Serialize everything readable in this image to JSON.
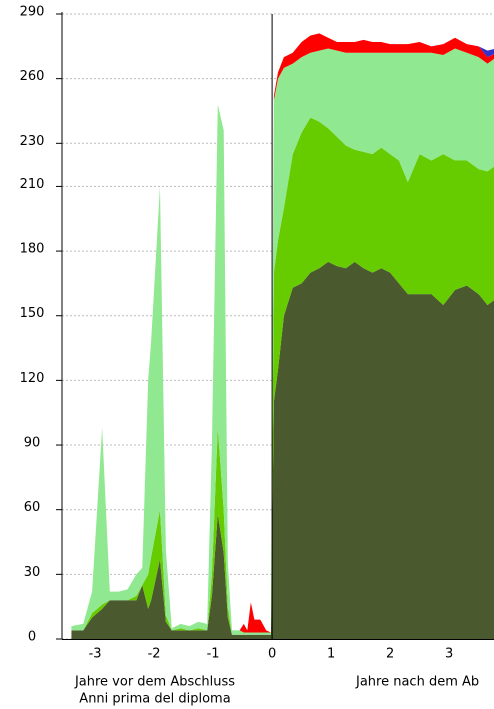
{
  "chart_data": {
    "type": "area",
    "x": [
      -3.4,
      -3.2,
      -3.05,
      -2.88,
      -2.75,
      -2.6,
      -2.45,
      -2.3,
      -2.2,
      -2.1,
      -2.05,
      -1.9,
      -1.8,
      -1.7,
      -1.55,
      -1.4,
      -1.25,
      -1.1,
      -1.02,
      -0.92,
      -0.82,
      -0.75,
      -0.68,
      -0.55,
      -0.48,
      -0.42,
      -0.36,
      -0.3,
      -0.2,
      -0.1,
      -0.02,
      0.03,
      0.1,
      0.2,
      0.35,
      0.5,
      0.65,
      0.8,
      0.95,
      1.1,
      1.25,
      1.4,
      1.55,
      1.7,
      1.85,
      2.0,
      2.15,
      2.3,
      2.5,
      2.7,
      2.9,
      3.1,
      3.3,
      3.5,
      3.65,
      3.8
    ],
    "series": [
      {
        "color": "#4b5a2e",
        "values": [
          4,
          4,
          10,
          14,
          18,
          18,
          18,
          18,
          25,
          14,
          18,
          37,
          8,
          4,
          4,
          4,
          4,
          4,
          20,
          58,
          40,
          10,
          2,
          2,
          2,
          2,
          2,
          2,
          2,
          2,
          2,
          110,
          125,
          150,
          163,
          165,
          170,
          172,
          175,
          173,
          172,
          175,
          172,
          170,
          172,
          170,
          165,
          160,
          160,
          160,
          155,
          162,
          164,
          160,
          155,
          158
        ]
      },
      {
        "color": "#66cc00",
        "values": [
          0,
          0,
          2,
          2,
          0,
          0,
          0,
          2,
          0,
          16,
          20,
          23,
          3,
          0,
          1,
          0,
          1,
          0,
          10,
          40,
          20,
          5,
          0,
          0,
          0,
          0,
          0,
          0,
          0,
          0,
          0,
          60,
          60,
          50,
          62,
          70,
          72,
          68,
          62,
          60,
          57,
          52,
          54,
          55,
          56,
          55,
          57,
          52,
          65,
          62,
          70,
          60,
          58,
          58,
          62,
          62
        ]
      },
      {
        "color": "#90e890",
        "values": [
          2,
          3,
          10,
          82,
          4,
          4,
          5,
          10,
          8,
          90,
          100,
          150,
          30,
          1,
          2,
          2,
          3,
          3,
          60,
          150,
          176,
          20,
          2,
          2,
          1,
          1,
          1,
          1,
          1,
          1,
          1,
          80,
          75,
          65,
          42,
          35,
          30,
          33,
          37,
          40,
          43,
          45,
          46,
          47,
          44,
          47,
          50,
          60,
          47,
          50,
          46,
          52,
          50,
          52,
          50,
          50
        ]
      },
      {
        "color": "#ff0000",
        "values": [
          0,
          0,
          0,
          0,
          0,
          0,
          0,
          0,
          0,
          0,
          0,
          0,
          0,
          0,
          0,
          0,
          0,
          0,
          0,
          0,
          0,
          0,
          0,
          0,
          4,
          1,
          14,
          6,
          6,
          1,
          0,
          2,
          3,
          5,
          5,
          7,
          8,
          8,
          5,
          4,
          5,
          5,
          6,
          5,
          5,
          4,
          4,
          4,
          5,
          3,
          5,
          5,
          4,
          5,
          3,
          2
        ]
      },
      {
        "color": "#3333cc",
        "values": [
          0,
          0,
          0,
          0,
          0,
          0,
          0,
          0,
          0,
          0,
          0,
          0,
          0,
          0,
          0,
          0,
          0,
          0,
          0,
          0,
          0,
          0,
          0,
          0,
          0,
          0,
          0,
          0,
          0,
          0,
          0,
          0,
          0,
          0,
          0,
          0,
          0,
          0,
          0,
          0,
          0,
          0,
          0,
          0,
          0,
          0,
          0,
          0,
          0,
          0,
          0,
          0,
          0,
          0,
          3,
          2
        ]
      }
    ],
    "xlim": [
      -3.56,
      3.76
    ],
    "xticks": [
      -3,
      -2,
      -1,
      0,
      1,
      2,
      3
    ],
    "ylim": [
      0,
      290
    ],
    "yticks": [
      0,
      30,
      60,
      90,
      120,
      150,
      180,
      210,
      230,
      260,
      290
    ],
    "grid": true,
    "vline": 0,
    "annotations": [
      "Jahre vor dem Abschluss",
      "Anni prima del diploma",
      "Jahre nach dem Ab"
    ]
  }
}
